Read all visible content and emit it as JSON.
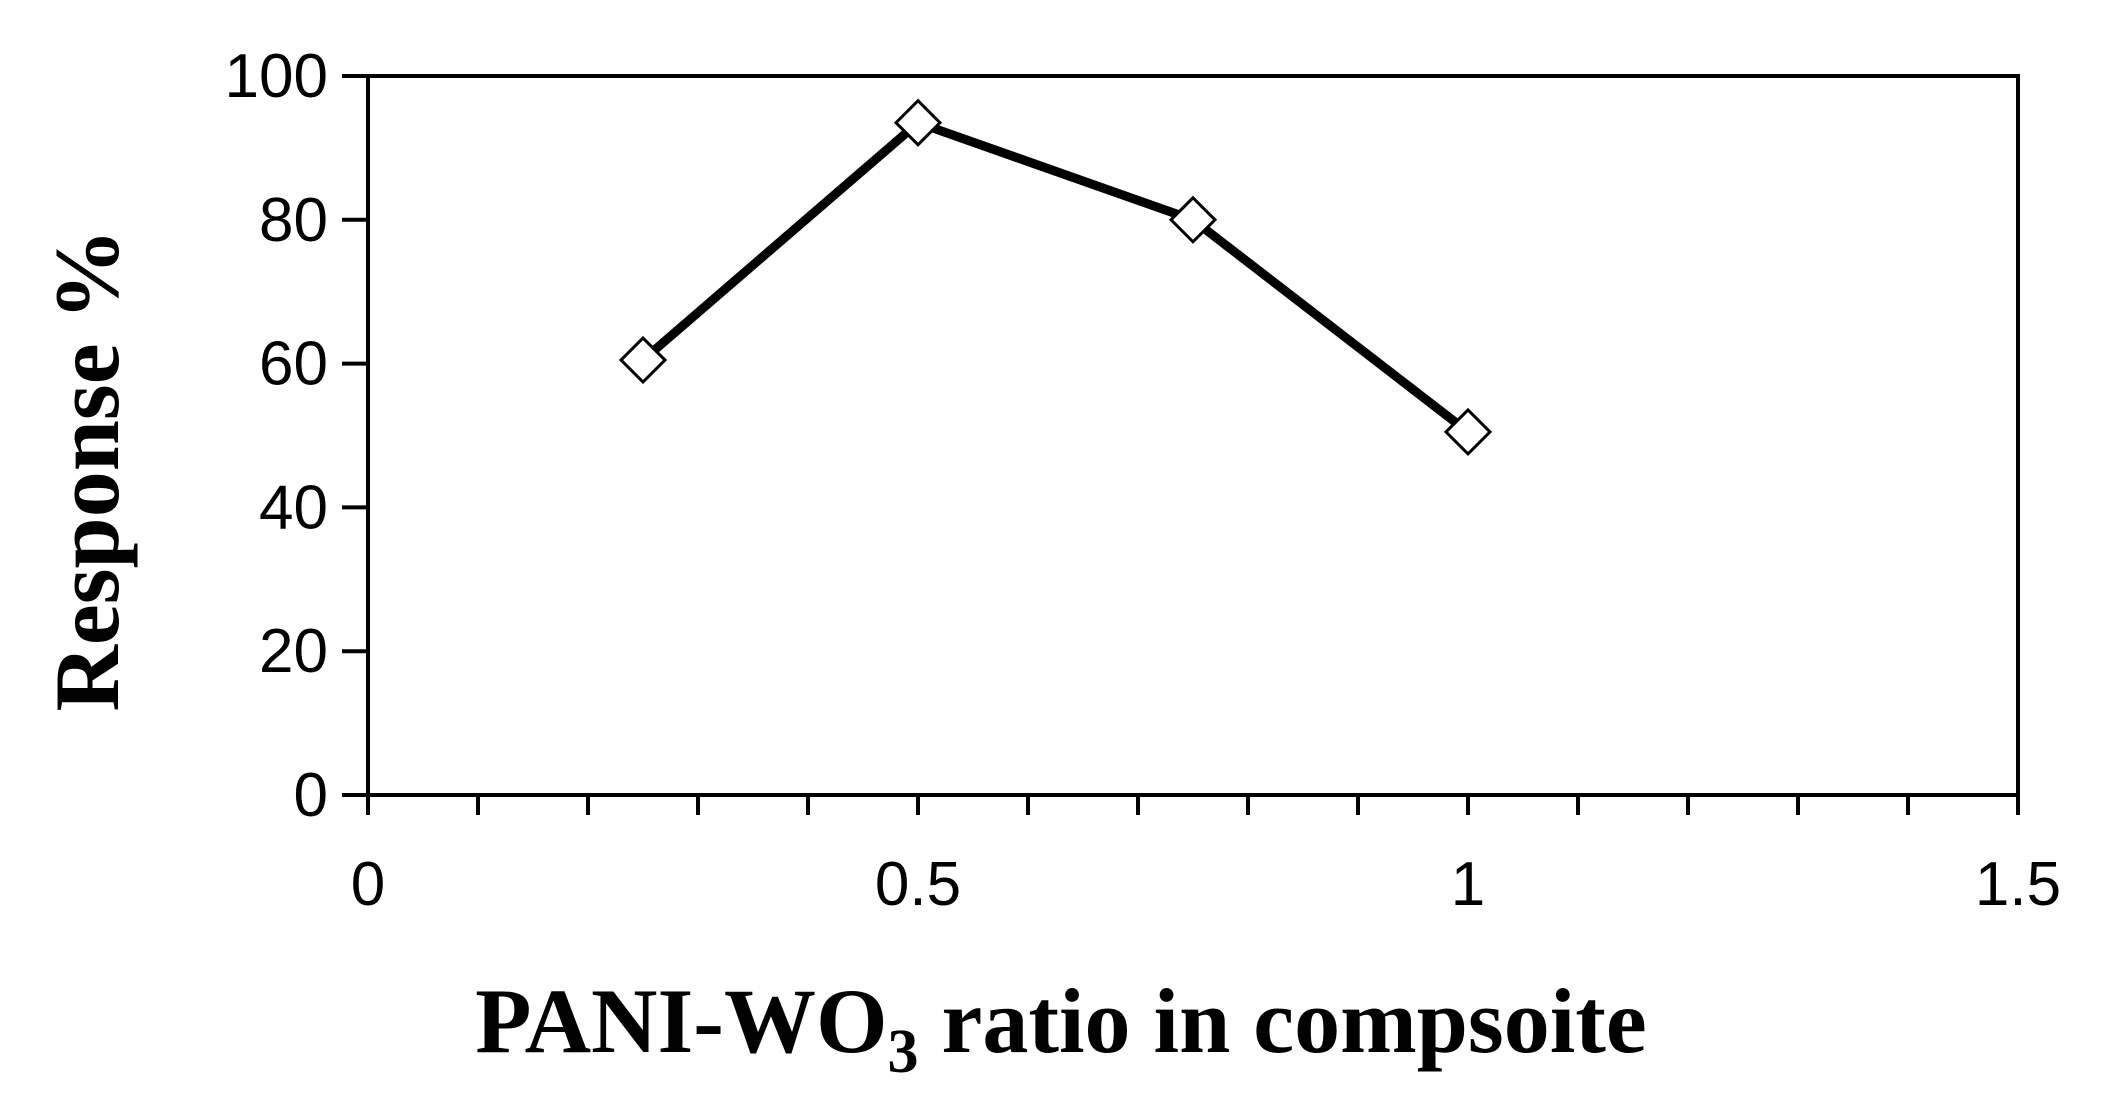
{
  "chart_data": {
    "type": "line",
    "title": "",
    "xlabel_main": "PANI-WO",
    "xlabel_sub": "3",
    "xlabel_rest": " ratio in compsoite",
    "ylabel": "Response %",
    "xlim": [
      0,
      1.5
    ],
    "ylim": [
      0,
      100
    ],
    "x_ticks": [
      "0",
      "0.5",
      "1",
      "1.5"
    ],
    "y_ticks": [
      "0",
      "20",
      "40",
      "60",
      "80",
      "100"
    ],
    "grid": false,
    "legend": "none",
    "series": [
      {
        "x": [
          0.25,
          0.5,
          0.75,
          1.0
        ],
        "y": [
          60.5,
          93.5,
          80.0,
          50.5
        ]
      }
    ],
    "colors": {
      "line": "#000000",
      "marker_fill": "#ffffff"
    }
  }
}
